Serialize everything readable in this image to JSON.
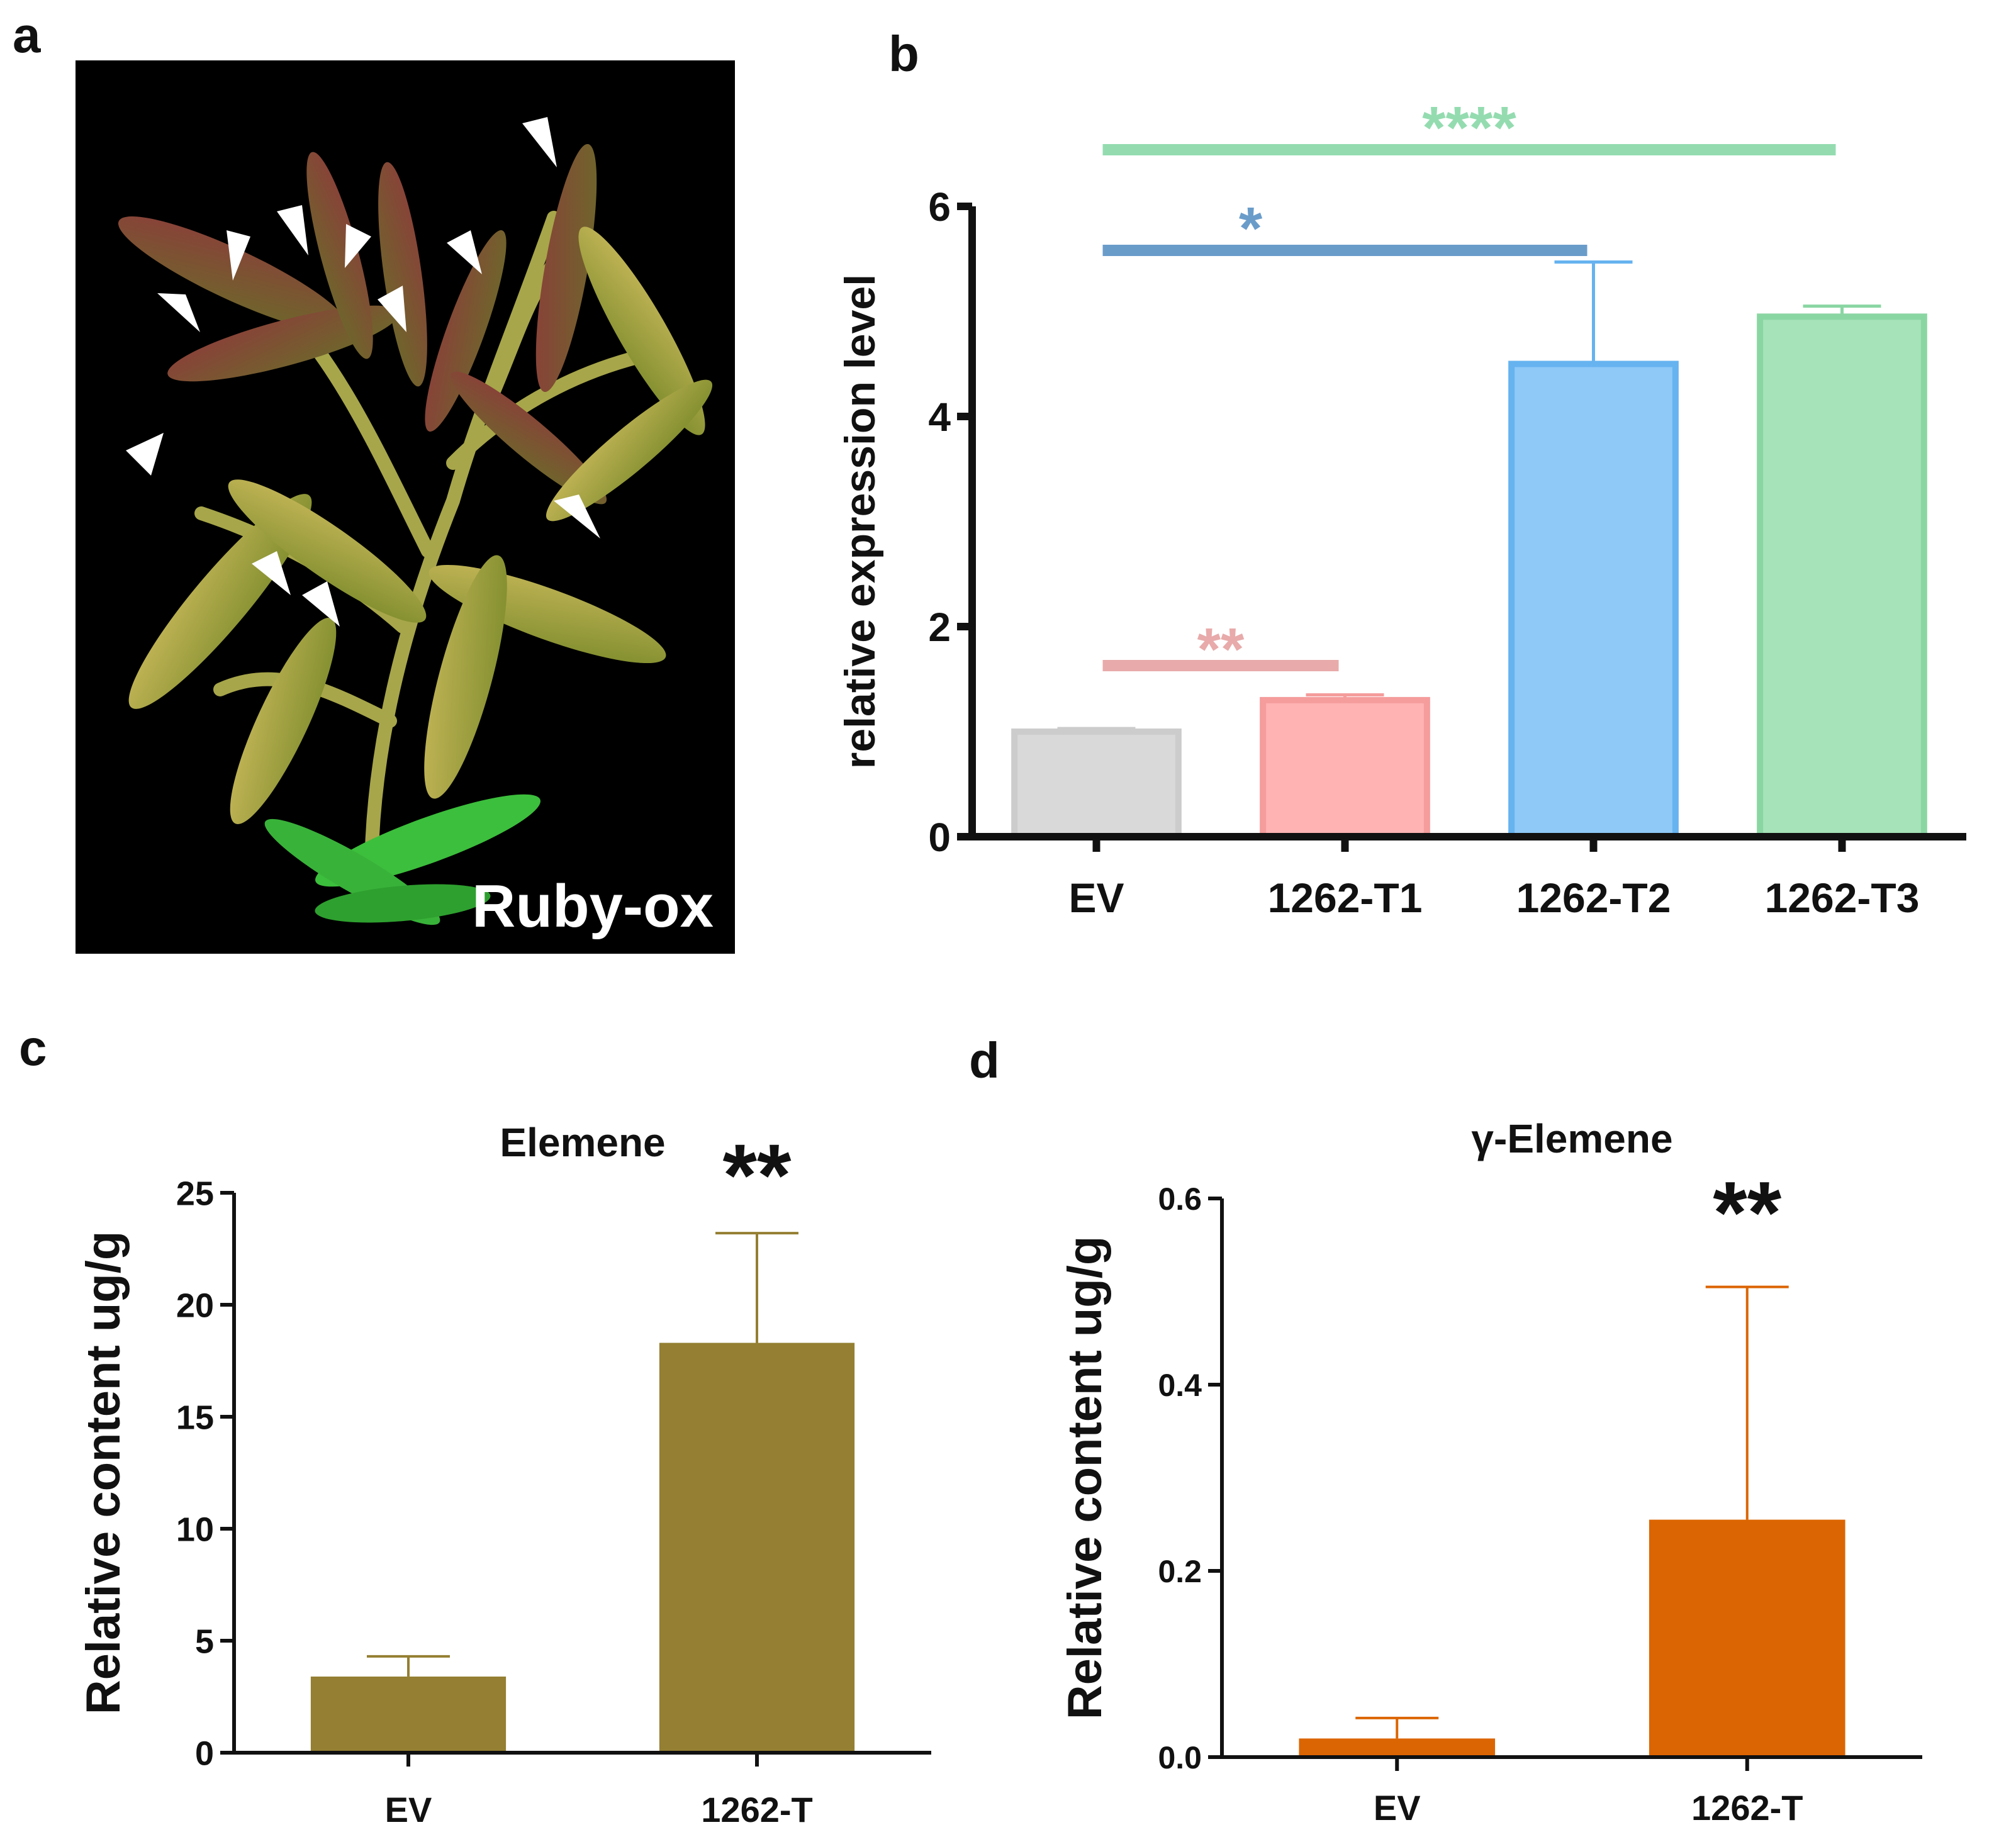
{
  "panels": {
    "a": "a",
    "b": "b",
    "c": "c",
    "d": "d"
  },
  "photo": {
    "label": "Ruby-ox",
    "arrow_count": 11
  },
  "chart_data": [
    {
      "panel": "b",
      "type": "bar",
      "title": "",
      "xlabel": "",
      "ylabel": "relative expression level",
      "categories": [
        "EV",
        "1262-T1",
        "1262-T2",
        "1262-T3"
      ],
      "values": [
        1.0,
        1.3,
        4.5,
        4.95
      ],
      "errors": [
        0.03,
        0.05,
        0.97,
        0.1
      ],
      "ylim": [
        0,
        6
      ],
      "yticks": [
        "0",
        "2",
        "4",
        "6"
      ],
      "colors": [
        "#d9d9d9",
        "#ffb3b3",
        "#8ec9f8",
        "#a6e3b8"
      ],
      "edge_colors": [
        "#cccccc",
        "#f59c9c",
        "#66b3f0",
        "#8ad6a3"
      ],
      "significance": [
        {
          "from": "EV",
          "to": "1262-T1",
          "label": "**",
          "color": "#e8aaaa"
        },
        {
          "from": "EV",
          "to": "1262-T2",
          "label": "*",
          "color": "#6a9cca"
        },
        {
          "from": "EV",
          "to": "1262-T3",
          "label": "****",
          "color": "#94dcb0"
        }
      ]
    },
    {
      "panel": "c",
      "type": "bar",
      "title": "Elemene",
      "xlabel": "",
      "ylabel": "Relative content ug/g",
      "categories": [
        "EV",
        "1262-T"
      ],
      "values": [
        3.4,
        18.3
      ],
      "errors": [
        0.9,
        4.9
      ],
      "ylim": [
        0,
        25
      ],
      "yticks": [
        "0",
        "5",
        "10",
        "15",
        "20",
        "25"
      ],
      "color": "#947f32",
      "annotation": "**"
    },
    {
      "panel": "d",
      "type": "bar",
      "title": "γ-Elemene",
      "xlabel": "",
      "ylabel": "Relative content ug/g",
      "categories": [
        "EV",
        "1262-T"
      ],
      "values": [
        0.02,
        0.255
      ],
      "errors": [
        0.022,
        0.25
      ],
      "ylim": [
        0,
        0.6
      ],
      "yticks": [
        "0.0",
        "0.2",
        "0.4",
        "0.6"
      ],
      "color": "#dc6503",
      "annotation": "**"
    }
  ]
}
